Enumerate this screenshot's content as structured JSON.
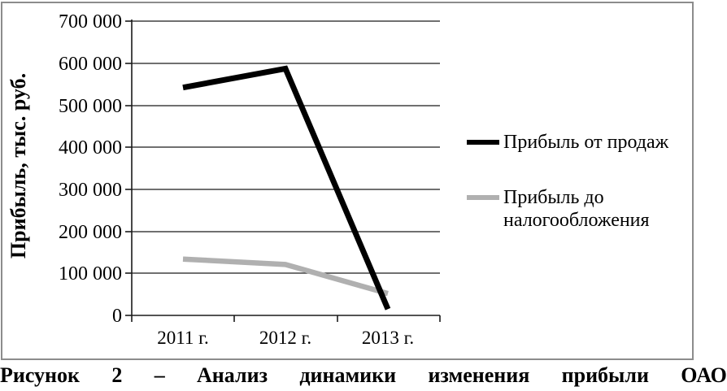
{
  "figure": {
    "caption_text": "Рисунок 2 – Анализ динамики изменения прибыли ОАО",
    "caption_words": [
      "Рисунок",
      "2",
      "–",
      "Анализ",
      "динамики",
      "изменения",
      "прибыли",
      "ОАО"
    ]
  },
  "chart_data": {
    "type": "line",
    "title": "",
    "xlabel": "",
    "ylabel": "Прибыль, тыс. руб.",
    "categories": [
      "2011 г.",
      "2012 г.",
      "2013 г."
    ],
    "series": [
      {
        "name": "Прибыль от продаж",
        "values": [
          542000,
          587000,
          15000
        ],
        "color": "#000000",
        "width": 7
      },
      {
        "name": "Прибыль до налогообложения",
        "values": [
          134000,
          121000,
          52000
        ],
        "color": "#b0b0b0",
        "width": 6.5
      }
    ],
    "ylim": [
      0,
      700000
    ],
    "y_tick_step": 100000,
    "y_ticks": [
      "700 000",
      "600 000",
      "500 000",
      "400 000",
      "300 000",
      "200 000",
      "100 000",
      "0"
    ],
    "grid": "horizontal",
    "legend_position": "right",
    "colors": {
      "grid": "#1a1a1a",
      "axis": "#1a1a1a",
      "figure_border": "#8c8c8c"
    }
  }
}
